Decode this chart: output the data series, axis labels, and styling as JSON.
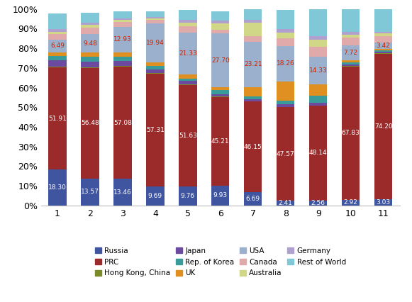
{
  "categories": [
    "1",
    "2",
    "3",
    "4",
    "5",
    "6",
    "7",
    "8",
    "9",
    "10",
    "11"
  ],
  "series_order": [
    "Russia",
    "PRC",
    "Hong Kong, China",
    "Japan",
    "Rep. of Korea",
    "UK",
    "USA",
    "Canada",
    "Australia",
    "Germany",
    "Rest of World"
  ],
  "series": {
    "Russia": [
      18.3,
      13.57,
      13.46,
      9.69,
      9.76,
      9.93,
      6.69,
      2.41,
      2.56,
      2.92,
      3.03
    ],
    "PRC": [
      51.91,
      56.48,
      57.08,
      57.31,
      51.63,
      45.21,
      46.15,
      47.57,
      48.14,
      67.83,
      74.2
    ],
    "Hong Kong, China": [
      0.4,
      0.4,
      0.4,
      0.25,
      0.18,
      0.18,
      0.18,
      0.18,
      0.18,
      0.18,
      0.25
    ],
    "Japan": [
      3.2,
      2.9,
      2.7,
      2.1,
      1.7,
      1.3,
      1.2,
      1.5,
      1.2,
      0.85,
      0.65
    ],
    "Rep. of Korea": [
      2.3,
      2.2,
      2.2,
      1.7,
      1.2,
      2.2,
      1.2,
      1.7,
      3.7,
      1.2,
      0.8
    ],
    "UK": [
      1.8,
      2.2,
      2.2,
      1.7,
      2.2,
      1.2,
      4.8,
      9.7,
      5.7,
      0.8,
      0.65
    ],
    "USA": [
      6.49,
      9.48,
      12.93,
      19.94,
      21.33,
      27.7,
      23.21,
      18.26,
      14.33,
      7.72,
      3.42
    ],
    "Canada": [
      2.8,
      3.3,
      2.3,
      1.8,
      3.3,
      1.8,
      2.8,
      3.8,
      4.8,
      3.8,
      3.3
    ],
    "Australia": [
      1.3,
      1.3,
      1.3,
      0.8,
      1.8,
      3.3,
      6.8,
      2.8,
      3.8,
      1.8,
      1.3
    ],
    "Germany": [
      1.3,
      1.3,
      0.8,
      0.8,
      1.3,
      1.3,
      1.3,
      1.8,
      1.8,
      1.3,
      0.8
    ],
    "Rest of World": [
      7.97,
      5.02,
      3.62,
      2.91,
      5.21,
      4.79,
      5.57,
      9.79,
      13.74,
      11.43,
      11.6
    ]
  },
  "colors": {
    "Russia": "#4055A0",
    "PRC": "#9B2B2B",
    "Hong Kong, China": "#7A8B28",
    "Japan": "#6B4AA0",
    "Rep. of Korea": "#3A9B9B",
    "UK": "#E09020",
    "USA": "#9BB0CC",
    "Canada": "#E0AAAA",
    "Australia": "#D0D888",
    "Germany": "#B0A0D0",
    "Rest of World": "#80C8D8"
  },
  "label_colors": {
    "Russia": "#FFFFFF",
    "PRC": "#FFFFFF",
    "USA": "#CC2200"
  },
  "russia_labels": [
    18.3,
    13.57,
    13.46,
    9.69,
    9.76,
    9.93,
    6.69,
    2.41,
    2.56,
    2.92,
    3.03
  ],
  "prc_labels": [
    51.91,
    56.48,
    57.08,
    57.31,
    51.63,
    45.21,
    46.15,
    47.57,
    48.14,
    67.83,
    74.2
  ],
  "usa_labels": [
    6.49,
    9.48,
    12.93,
    19.94,
    21.33,
    27.7,
    23.21,
    18.26,
    14.33,
    7.72,
    3.42
  ],
  "legend_order": [
    "Russia",
    "PRC",
    "Hong Kong, China",
    "Japan",
    "Rep. of Korea",
    "UK",
    "USA",
    "Canada",
    "Australia",
    "Germany",
    "Rest of World"
  ],
  "ylim": [
    0,
    100
  ],
  "yticks": [
    0,
    10,
    20,
    30,
    40,
    50,
    60,
    70,
    80,
    90,
    100
  ],
  "background_color": "#FFFFFF",
  "bar_width": 0.55
}
